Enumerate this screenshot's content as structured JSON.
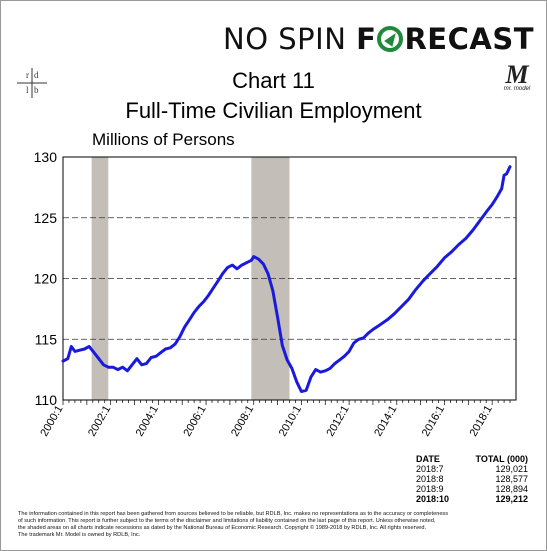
{
  "brand": {
    "part1": "NO SPIN ",
    "part2a": "F",
    "part2b": "RECAST"
  },
  "title_line1": "Chart 11",
  "title_line2": "Full-Time Civilian Employment",
  "units_label": "Millions of Persons",
  "logo_right": {
    "letter": "M",
    "caption": "mr. model"
  },
  "logo_left": {
    "letters": [
      "r",
      "d",
      "l",
      "b"
    ]
  },
  "chart_data": {
    "type": "line",
    "title": "Chart 11",
    "subtitle": "Full-Time Civilian Employment",
    "ylabel": "Millions of Persons",
    "ylim": [
      110,
      130
    ],
    "yticks": [
      110,
      115,
      120,
      125,
      130
    ],
    "xlim": [
      2000.0,
      2019.0
    ],
    "xticks": [
      {
        "label": "2000:1",
        "value": 2000.0
      },
      {
        "label": "2002:1",
        "value": 2002.0
      },
      {
        "label": "2004:1",
        "value": 2004.0
      },
      {
        "label": "2006:1",
        "value": 2006.0
      },
      {
        "label": "2008:1",
        "value": 2008.0
      },
      {
        "label": "2010:1",
        "value": 2010.0
      },
      {
        "label": "2012:1",
        "value": 2012.0
      },
      {
        "label": "2014:1",
        "value": 2014.0
      },
      {
        "label": "2016:1",
        "value": 2016.0
      },
      {
        "label": "2018:1",
        "value": 2018.0
      }
    ],
    "grid": "horizontal dashed",
    "recessions": [
      [
        2001.2,
        2001.9
      ],
      [
        2007.9,
        2009.5
      ]
    ],
    "series": [
      {
        "color": "#1a1adc",
        "x": [
          2000.0,
          2000.2,
          2000.35,
          2000.5,
          2000.7,
          2000.9,
          2001.1,
          2001.3,
          2001.5,
          2001.7,
          2001.9,
          2002.1,
          2002.3,
          2002.5,
          2002.7,
          2002.9,
          2003.1,
          2003.3,
          2003.5,
          2003.7,
          2003.9,
          2004.1,
          2004.3,
          2004.5,
          2004.7,
          2004.9,
          2005.1,
          2005.3,
          2005.5,
          2005.7,
          2005.9,
          2006.1,
          2006.3,
          2006.5,
          2006.7,
          2006.9,
          2007.1,
          2007.3,
          2007.5,
          2007.7,
          2007.9,
          2008.0,
          2008.2,
          2008.4,
          2008.6,
          2008.8,
          2009.0,
          2009.2,
          2009.4,
          2009.6,
          2009.8,
          2010.0,
          2010.2,
          2010.4,
          2010.6,
          2010.8,
          2011.0,
          2011.2,
          2011.4,
          2011.6,
          2011.8,
          2012.0,
          2012.2,
          2012.4,
          2012.6,
          2012.8,
          2013.0,
          2013.3,
          2013.6,
          2013.9,
          2014.2,
          2014.5,
          2014.8,
          2015.1,
          2015.4,
          2015.7,
          2016.0,
          2016.3,
          2016.6,
          2016.9,
          2017.2,
          2017.5,
          2017.8,
          2018.0,
          2018.2,
          2018.4,
          2018.5,
          2018.6,
          2018.75
        ],
        "y": [
          113.2,
          113.4,
          114.4,
          114.0,
          114.1,
          114.2,
          114.4,
          113.9,
          113.4,
          112.9,
          112.7,
          112.7,
          112.5,
          112.7,
          112.4,
          112.9,
          113.4,
          112.9,
          113.0,
          113.5,
          113.6,
          113.9,
          114.2,
          114.3,
          114.6,
          115.2,
          116.0,
          116.6,
          117.2,
          117.7,
          118.1,
          118.6,
          119.2,
          119.8,
          120.4,
          120.9,
          121.1,
          120.8,
          121.1,
          121.3,
          121.5,
          121.8,
          121.6,
          121.2,
          120.4,
          119.0,
          116.8,
          114.5,
          113.3,
          112.6,
          111.5,
          110.7,
          110.8,
          111.9,
          112.5,
          112.3,
          112.4,
          112.6,
          113.0,
          113.3,
          113.6,
          114.0,
          114.7,
          115.0,
          115.1,
          115.5,
          115.8,
          116.2,
          116.6,
          117.1,
          117.7,
          118.3,
          119.1,
          119.8,
          120.4,
          121.0,
          121.7,
          122.2,
          122.8,
          123.3,
          124.0,
          124.8,
          125.6,
          126.1,
          126.7,
          127.4,
          128.5,
          128.6,
          129.2
        ]
      }
    ]
  },
  "table": {
    "header": [
      "DATE",
      "TOTAL (000)"
    ],
    "rows": [
      {
        "date": "2018:7",
        "value": "129,021"
      },
      {
        "date": "2018:8",
        "value": "128,577"
      },
      {
        "date": "2018:9",
        "value": "128,894"
      },
      {
        "date": "2018:10",
        "value": "129,212"
      }
    ]
  },
  "footer": {
    "line1": "The information contained in this report has been gathered from sources believed to be reliable, but RDLB, Inc. makes no representations as to the accuracy or completeness",
    "line2": "of such information. This report is further subject to the terms of the disclaimer and limitations of liability contained on the last page of this report. Unless otherwise noted,",
    "line3": "the shaded areas on all charts indicate recessions as dated by the National Bureau of Economic Research. Copyright © 1989-2018 by RDLB, Inc. All rights reserved.",
    "line4": "The trademark Mr. Model is owned by RDLB, Inc."
  }
}
